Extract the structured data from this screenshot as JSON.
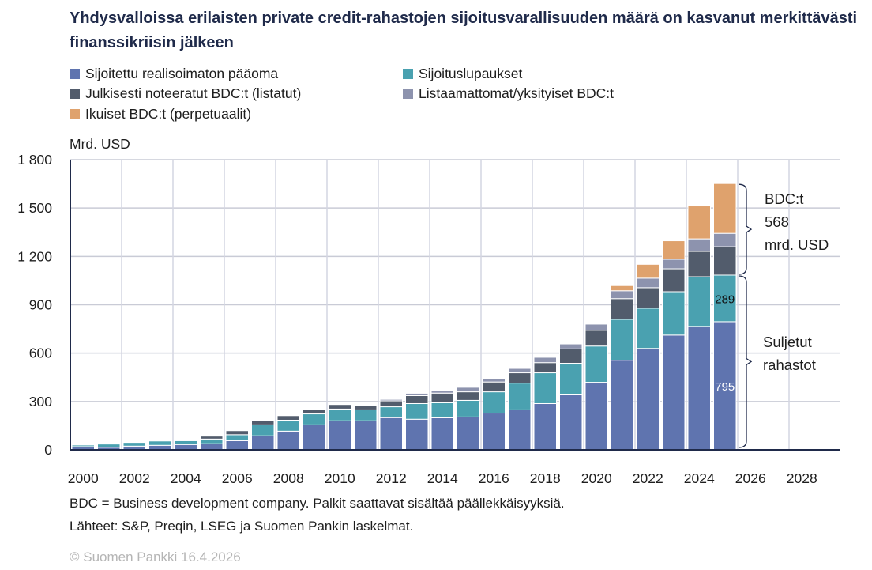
{
  "chart_data": {
    "type": "bar",
    "stacked": true,
    "title": "Yhdysvalloissa erilaisten private credit-rahastojen sijoitusvarallisuuden määrä on kasvanut merkittävästi finanssikriisin jälkeen",
    "ylabel": "Mrd. USD",
    "ylim": [
      0,
      1800
    ],
    "yticks": [
      0,
      300,
      600,
      900,
      1200,
      1500,
      1800
    ],
    "ytick_labels": [
      "0",
      "300",
      "600",
      "900",
      "1 200",
      "1 500",
      "1 800"
    ],
    "xlim": [
      2000,
      2029
    ],
    "xticks": [
      2000,
      2002,
      2004,
      2006,
      2008,
      2010,
      2012,
      2014,
      2016,
      2018,
      2020,
      2022,
      2024,
      2026,
      2028
    ],
    "grid": true,
    "legend_position": "top",
    "categories": [
      2000,
      2001,
      2002,
      2003,
      2004,
      2005,
      2006,
      2007,
      2008,
      2009,
      2010,
      2011,
      2012,
      2013,
      2014,
      2015,
      2016,
      2017,
      2018,
      2019,
      2020,
      2021,
      2022,
      2023,
      2024,
      2025
    ],
    "series": [
      {
        "name": "Sijoitettu realisoimaton pääoma",
        "color": "#5f74af",
        "values": [
          20,
          16,
          23,
          28,
          33,
          38,
          57,
          87,
          116,
          155,
          180,
          180,
          200,
          190,
          199,
          204,
          228,
          248,
          287,
          341,
          419,
          556,
          629,
          712,
          766,
          795
        ]
      },
      {
        "name": "Sijoituslupaukset",
        "color": "#4aa1b0",
        "values": [
          10,
          20,
          23,
          27,
          24,
          29,
          37,
          68,
          68,
          68,
          73,
          68,
          67,
          97,
          93,
          103,
          132,
          166,
          191,
          196,
          225,
          254,
          250,
          269,
          308,
          289
        ]
      },
      {
        "name": "Julkisesti noteeratut BDC:t (listatut)",
        "color": "#525c6c",
        "values": [
          0,
          0,
          0,
          0,
          8,
          18,
          25,
          27,
          28,
          25,
          28,
          28,
          37,
          49,
          60,
          53,
          61,
          64,
          63,
          89,
          98,
          128,
          127,
          142,
          157,
          176
        ]
      },
      {
        "name": "Listaamattomat/yksityiset BDC:t",
        "color": "#8d93ae",
        "values": [
          0,
          0,
          0,
          0,
          0,
          0,
          0,
          0,
          0,
          0,
          0,
          0,
          9,
          15,
          16,
          28,
          21,
          27,
          33,
          31,
          38,
          49,
          59,
          59,
          78,
          83
        ]
      },
      {
        "name": "Ikuiset BDC:t (perpetuaalit)",
        "color": "#dfa26d",
        "values": [
          0,
          0,
          0,
          0,
          0,
          0,
          0,
          0,
          0,
          0,
          0,
          0,
          0,
          0,
          0,
          0,
          0,
          0,
          0,
          0,
          0,
          32,
          86,
          115,
          204,
          309
        ]
      }
    ],
    "data_labels": [
      {
        "year": 2025,
        "series": "Sijoituslupaukset",
        "text": "289"
      },
      {
        "year": 2025,
        "series": "Sijoitettu realisoimaton pääoma",
        "text": "795"
      }
    ],
    "annotations": {
      "bdc": [
        "BDC:t",
        "568",
        "mrd. USD"
      ],
      "closed": [
        "Suljetut",
        "rahastot"
      ]
    }
  },
  "notes": [
    "BDC = Business development company. Palkit saattavat sisältää päällekkäisyyksiä.",
    "Lähteet: S&P, Preqin, LSEG ja Suomen Pankin laskelmat."
  ],
  "copyright": "© Suomen Pankki 16.4.2026"
}
